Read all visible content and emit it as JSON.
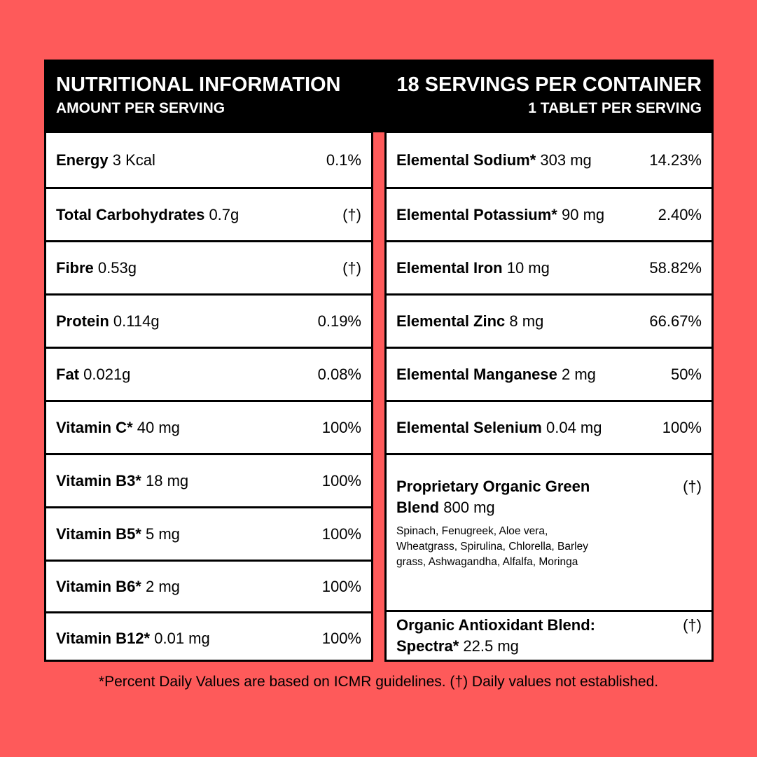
{
  "header": {
    "left": {
      "title": "NUTRITIONAL INFORMATION",
      "subtitle": "AMOUNT PER SERVING"
    },
    "right": {
      "title": "18 SERVINGS PER CONTAINER",
      "subtitle": "1 TABLET PER SERVING"
    }
  },
  "left_rows": [
    {
      "name": "Energy",
      "amount": "3 Kcal",
      "dv": "0.1%"
    },
    {
      "name": "Total Carbohydrates",
      "amount": "0.7g",
      "dv": "(†)"
    },
    {
      "name": "Fibre",
      "amount": "0.53g",
      "dv": "(†)"
    },
    {
      "name": "Protein",
      "amount": "0.114g",
      "dv": "0.19%"
    },
    {
      "name": "Fat",
      "amount": "0.021g",
      "dv": "0.08%"
    },
    {
      "name": "Vitamin C*",
      "amount": "40 mg",
      "dv": "100%"
    },
    {
      "name": "Vitamin B3*",
      "amount": "18 mg",
      "dv": "100%"
    },
    {
      "name": "Vitamin B5*",
      "amount": "5 mg",
      "dv": "100%"
    },
    {
      "name": "Vitamin B6*",
      "amount": "2 mg",
      "dv": "100%"
    },
    {
      "name": "Vitamin B12*",
      "amount": "0.01 mg",
      "dv": "100%"
    }
  ],
  "right_rows": [
    {
      "name": "Elemental Sodium*",
      "amount": "303 mg",
      "dv": "14.23%"
    },
    {
      "name": "Elemental Potassium*",
      "amount": "90 mg",
      "dv": "2.40%"
    },
    {
      "name": "Elemental Iron",
      "amount": "10 mg",
      "dv": "58.82%"
    },
    {
      "name": "Elemental Zinc",
      "amount": "8 mg",
      "dv": "66.67%"
    },
    {
      "name": "Elemental Manganese",
      "amount": "2 mg",
      "dv": "50%"
    },
    {
      "name": "Elemental Selenium",
      "amount": "0.04 mg",
      "dv": "100%"
    },
    {
      "name": "Proprietary Organic Green Blend",
      "amount": "800 mg",
      "dv": "(†)",
      "description": "Spinach, Fenugreek, Aloe vera, Wheatgrass, Spirulina, Chlorella, Barley grass, Ashwagandha, Alfalfa, Moringa"
    },
    {
      "name": "Organic Antioxidant Blend: Spectra*",
      "amount": "22.5 mg",
      "dv": "(†)"
    }
  ],
  "footnote": "*Percent Daily Values are based on ICMR guidelines. (†) Daily values not established."
}
